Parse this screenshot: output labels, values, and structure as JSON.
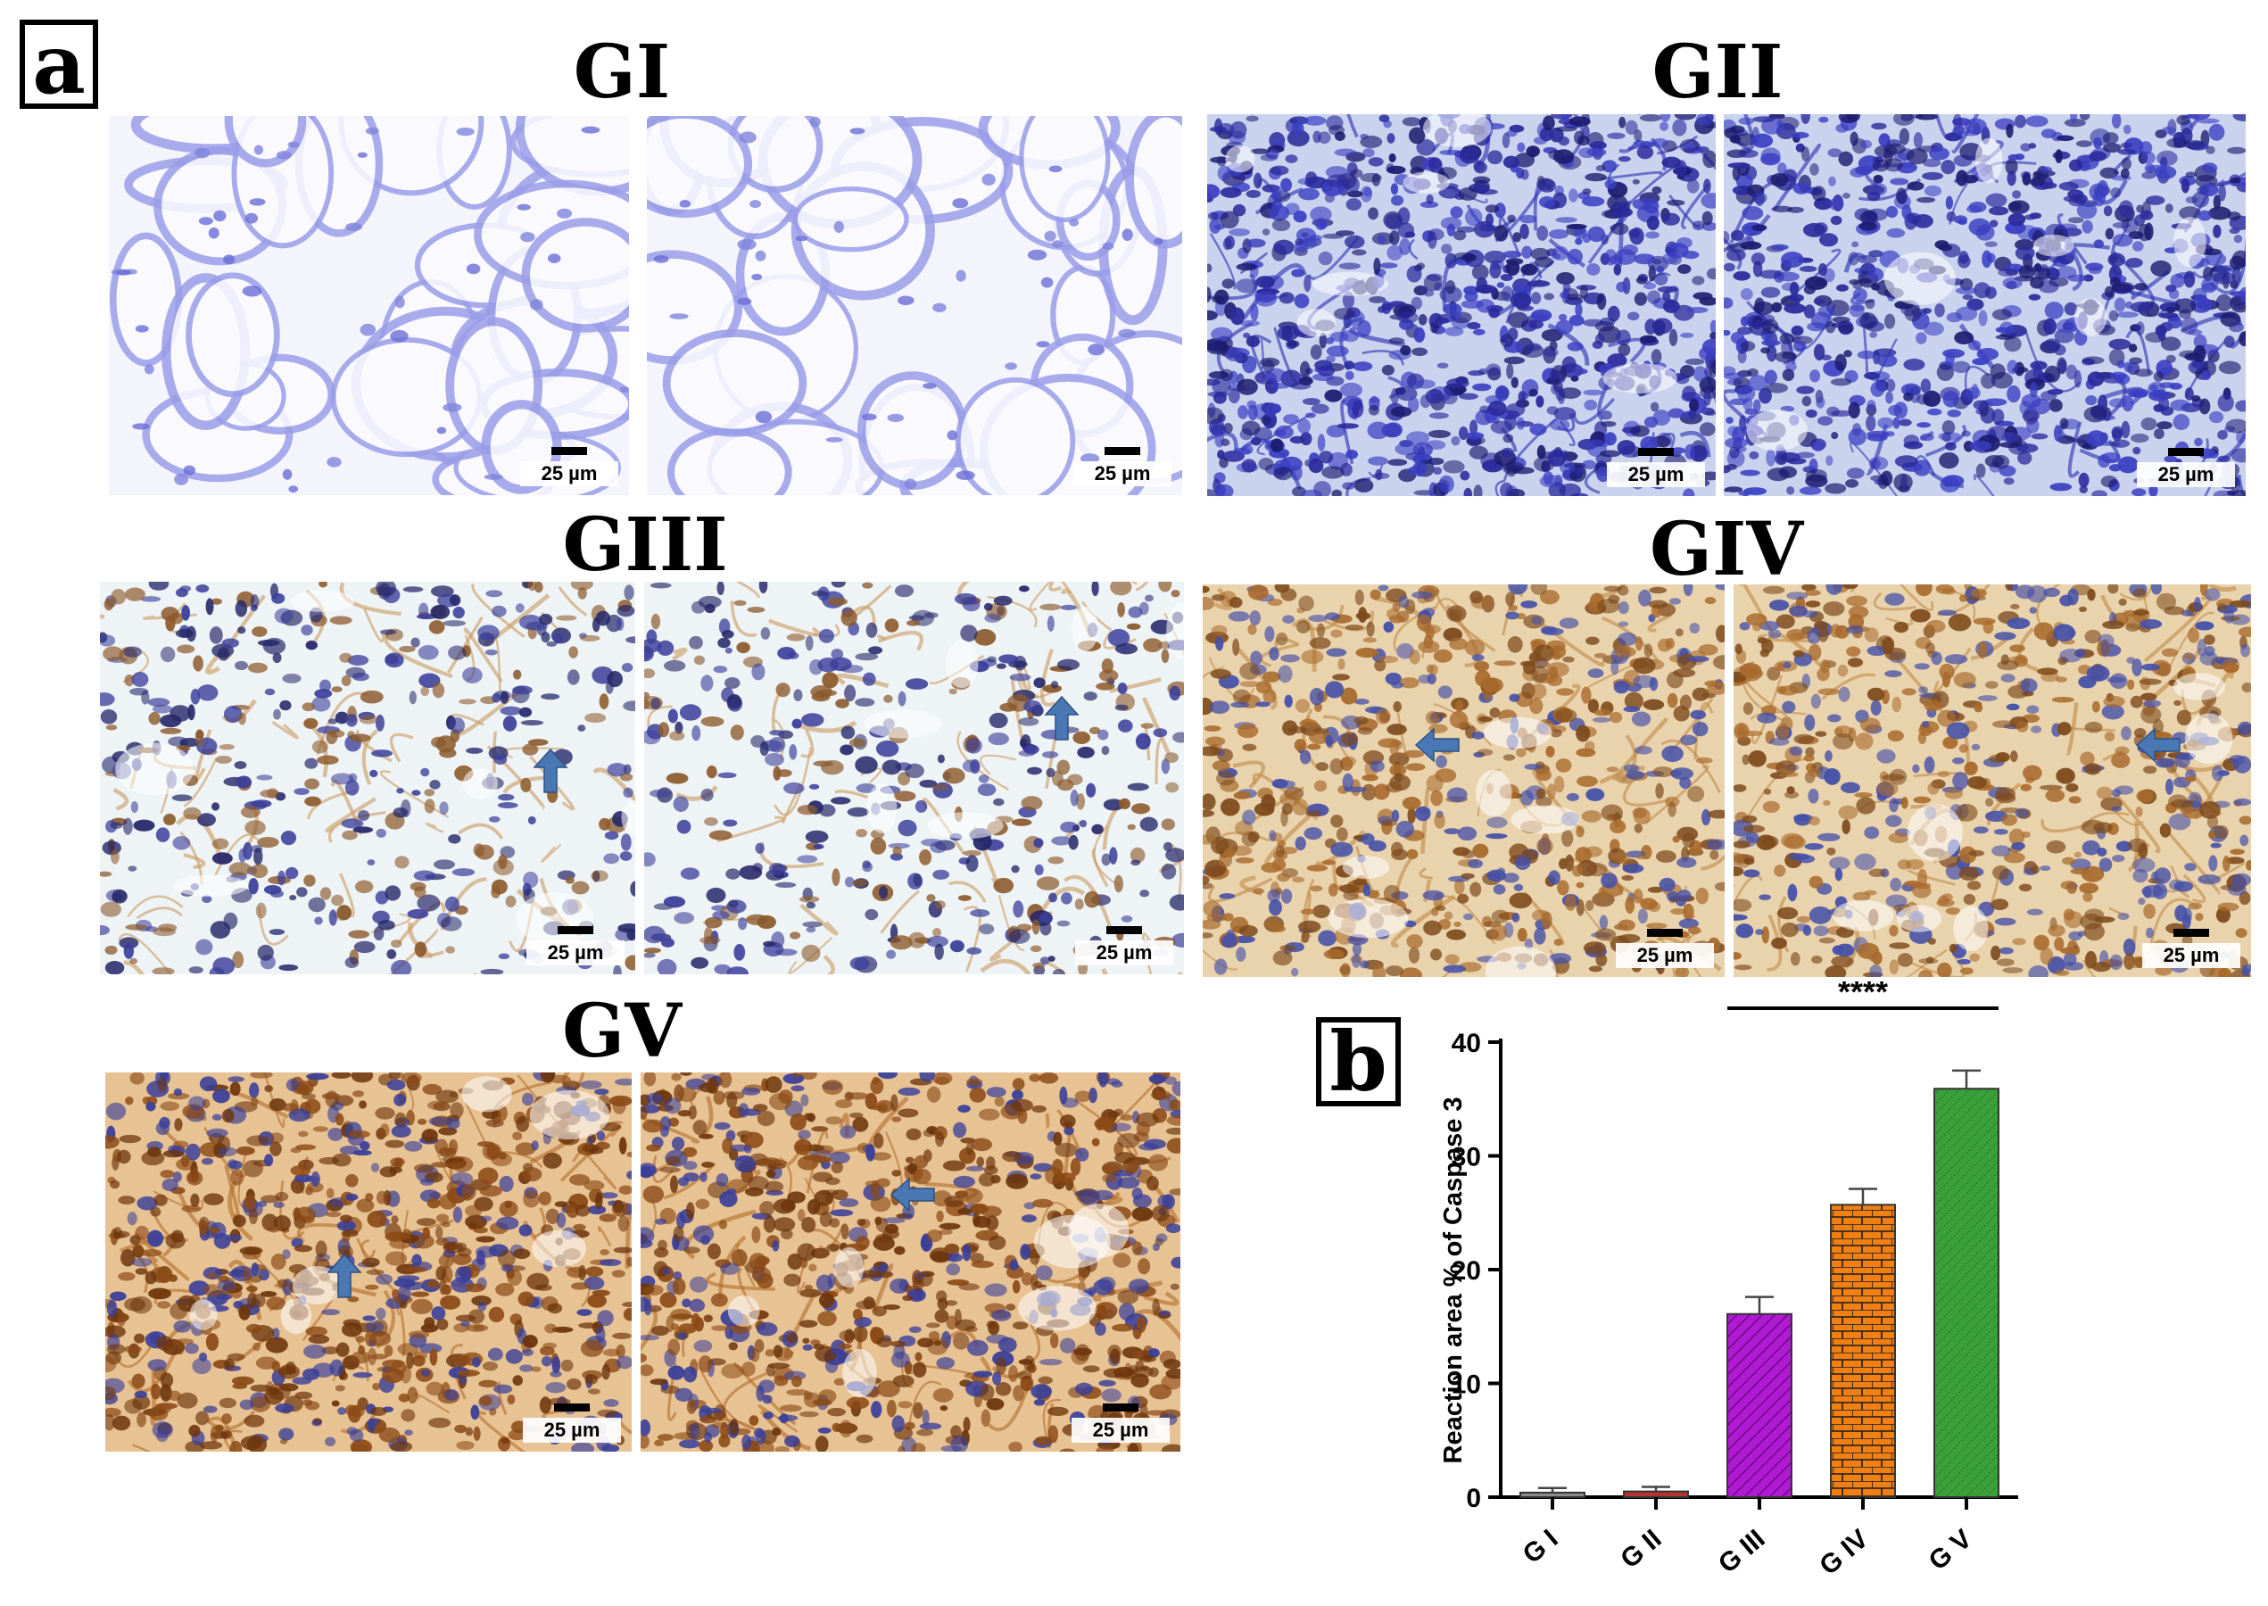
{
  "panel_labels": {
    "a": "a",
    "b": "b"
  },
  "groups": [
    {
      "id": "GI",
      "title": "GI",
      "stain": "blue-adipose"
    },
    {
      "id": "GII",
      "title": "GII",
      "stain": "blue-dense"
    },
    {
      "id": "GIII",
      "title": "GIII",
      "stain": "brown-light"
    },
    {
      "id": "GIV",
      "title": "GIV",
      "stain": "brown-medium"
    },
    {
      "id": "GV",
      "title": "GV",
      "stain": "brown-strong"
    }
  ],
  "scale_bar_label": "25 µm",
  "arrow_color": "#4a78b5",
  "chart_data": {
    "type": "bar",
    "categories": [
      "G I",
      "G II",
      "G III",
      "G IV",
      "G V"
    ],
    "values": [
      0.4,
      0.5,
      16.1,
      25.7,
      35.9
    ],
    "errors": [
      0.4,
      0.4,
      1.5,
      1.4,
      1.6
    ],
    "bar_colors": [
      "#8a8a8a",
      "#b5342e",
      "#b01ad3",
      "#f07f14",
      "#3aa13a"
    ],
    "bar_patterns": [
      "none",
      "none",
      "diagonal-hatch",
      "brick",
      "dotted-hatch"
    ],
    "ylabel": "Reaction area % of Caspase 3",
    "xlabel": "",
    "ylim": [
      0,
      40
    ],
    "yticks": [
      0,
      10,
      20,
      30,
      40
    ],
    "significance": {
      "label": "****",
      "from": "G III",
      "to": "G V"
    },
    "grid": false,
    "legend": "none"
  }
}
